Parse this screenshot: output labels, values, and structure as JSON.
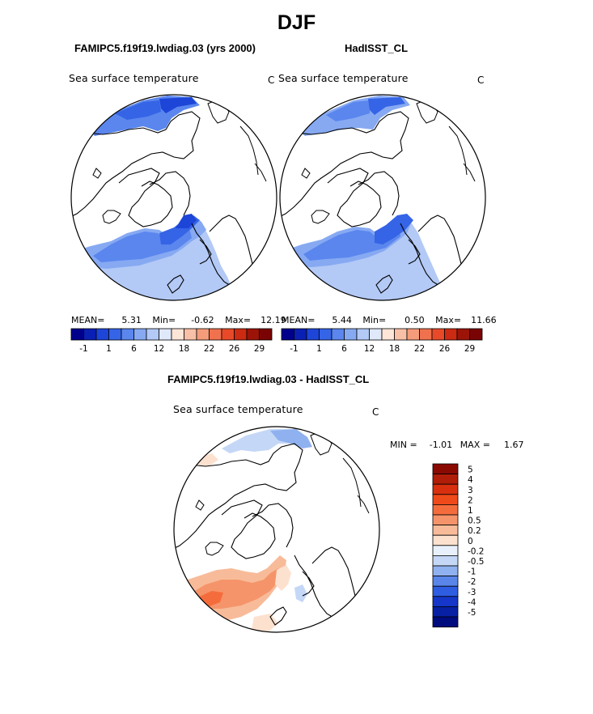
{
  "page": {
    "title": "DJF",
    "left_case_title": "FAMIPC5.f19f19.lwdiag.03 (yrs 2000)",
    "right_case_title": "HadISST_CL",
    "diff_title": "FAMIPC5.f19f19.lwdiag.03 - HadISST_CL"
  },
  "chart_data": [
    {
      "type": "heatmap",
      "projection": "polar-stereographic (north)",
      "title": "Sea surface temperature",
      "units": "C",
      "stats": {
        "mean_label": "MEAN=",
        "mean": "5.31",
        "min_label": "Min=",
        "min": "-0.62",
        "max_label": "Max=",
        "max": "12.19"
      },
      "colorbar": {
        "levels": [
          "-1",
          "0",
          "1",
          "3",
          "6",
          "9",
          "12",
          "15",
          "18",
          "20",
          "22",
          "24",
          "26",
          "28",
          "29"
        ],
        "tick_labels": [
          "-1",
          "1",
          "6",
          "12",
          "18",
          "22",
          "26",
          "29"
        ],
        "colors": [
          "#00008c",
          "#0a1fb4",
          "#1d45d8",
          "#3564e6",
          "#5a86ee",
          "#86a9f2",
          "#b3c9f6",
          "#dfe9fa",
          "#fde5d8",
          "#f9c0a8",
          "#f59c7a",
          "#f0714e",
          "#e84a29",
          "#cc2a12",
          "#9c1408",
          "#7a0404"
        ]
      }
    },
    {
      "type": "heatmap",
      "projection": "polar-stereographic (north)",
      "title": "Sea surface temperature",
      "units": "C",
      "stats": {
        "mean_label": "MEAN=",
        "mean": "5.44",
        "min_label": "Min=",
        "min": "0.50",
        "max_label": "Max=",
        "max": "11.66"
      },
      "colorbar": {
        "tick_labels": [
          "-1",
          "1",
          "6",
          "12",
          "18",
          "22",
          "26",
          "29"
        ]
      }
    },
    {
      "type": "heatmap",
      "projection": "polar-stereographic (north)",
      "title": "Sea surface temperature",
      "units": "C",
      "stats": {
        "min_label": "MIN =",
        "min": "-1.01",
        "max_label": "MAX =",
        "max": "1.67"
      },
      "colorbar": {
        "orientation": "vertical",
        "tick_labels": [
          "5",
          "4",
          "3",
          "2",
          "1",
          "0.5",
          "0.2",
          "0",
          "-0.2",
          "-0.5",
          "-1",
          "-2",
          "-3",
          "-4",
          "-5"
        ],
        "colors": [
          "#8a0a02",
          "#b01d08",
          "#d8300e",
          "#ef4a1a",
          "#f56c3c",
          "#f5946a",
          "#f8bb99",
          "#fde1cf",
          "#e7f0fb",
          "#c4d7f6",
          "#8fb1f0",
          "#5a86ea",
          "#2f5de2",
          "#1536c8",
          "#0820a4",
          "#000c7e"
        ]
      }
    }
  ]
}
